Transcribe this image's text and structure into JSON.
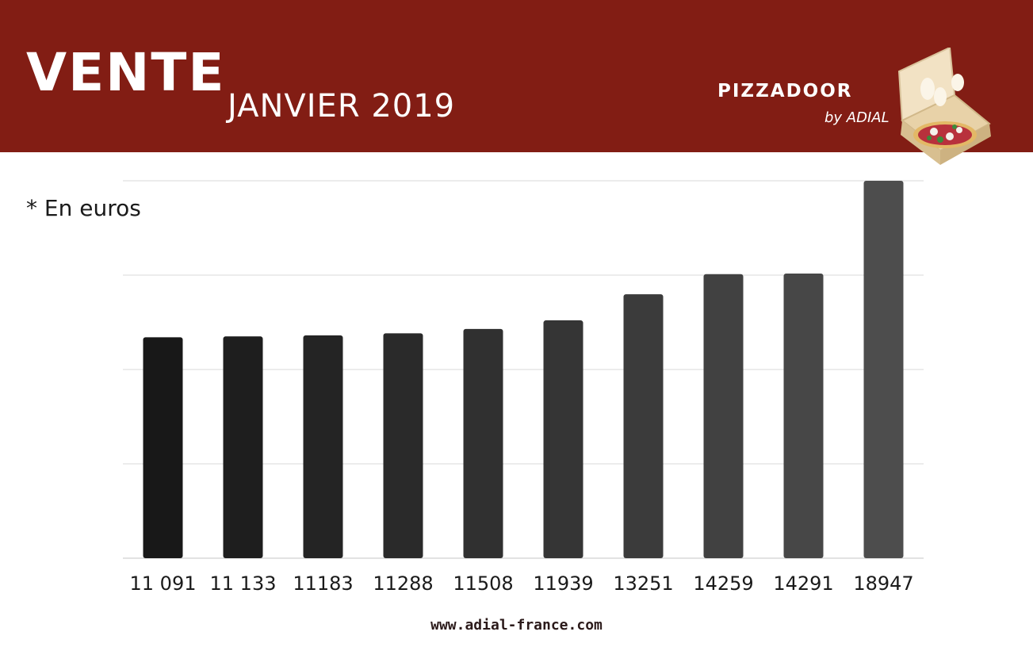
{
  "header": {
    "title": "VENTE",
    "subtitle": "JANVIER 2019",
    "logo_text": "PIZZADOOR",
    "logo_sub": "by ADIAL"
  },
  "note": "* En euros",
  "footer": {
    "url": "www.adial-france.com"
  },
  "colors": {
    "banner": "#821d14",
    "bar_dark": "#181818",
    "bar_light": "#4d4d4d",
    "grid": "#d9d9d9"
  },
  "chart_data": {
    "type": "bar",
    "title": "",
    "xlabel": "",
    "ylabel": "",
    "categories": [
      "11 091",
      "11 133",
      "11183",
      "11288",
      "11508",
      "11939",
      "13251",
      "14259",
      "14291",
      "18947"
    ],
    "values": [
      11091,
      11133,
      11183,
      11288,
      11508,
      11939,
      13251,
      14259,
      14291,
      18947
    ],
    "ylim": [
      0,
      18947
    ],
    "grid": true,
    "legend": "none"
  }
}
